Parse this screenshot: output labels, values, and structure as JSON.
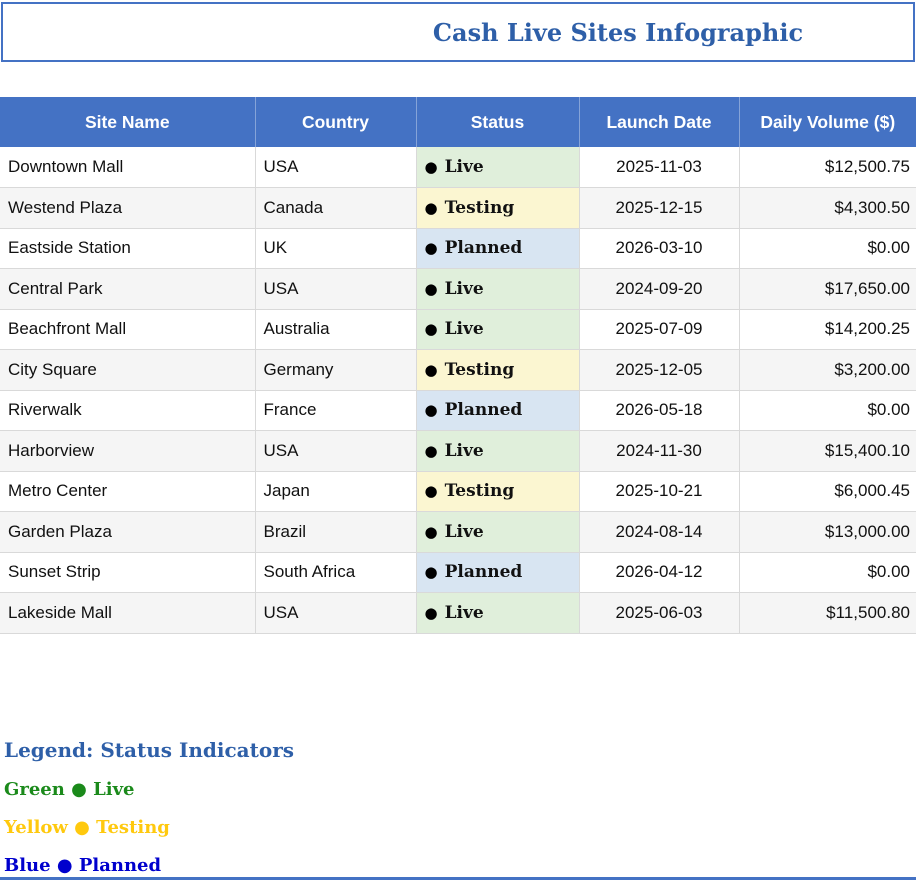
{
  "chart_data": {
    "type": "table",
    "title": "Cash Live Sites Infographic",
    "columns": [
      "Site Name",
      "Country",
      "Status",
      "Launch Date",
      "Daily Volume ($)"
    ],
    "status_bullet": "●",
    "rows": [
      {
        "site": "Downtown Mall",
        "country": "USA",
        "status": "Live",
        "launch_date": "2025-11-03",
        "daily_volume": "$12,500.75"
      },
      {
        "site": "Westend Plaza",
        "country": "Canada",
        "status": "Testing",
        "launch_date": "2025-12-15",
        "daily_volume": "$4,300.50"
      },
      {
        "site": "Eastside Station",
        "country": "UK",
        "status": "Planned",
        "launch_date": "2026-03-10",
        "daily_volume": "$0.00"
      },
      {
        "site": "Central Park",
        "country": "USA",
        "status": "Live",
        "launch_date": "2024-09-20",
        "daily_volume": "$17,650.00"
      },
      {
        "site": "Beachfront Mall",
        "country": "Australia",
        "status": "Live",
        "launch_date": "2025-07-09",
        "daily_volume": "$14,200.25"
      },
      {
        "site": "City Square",
        "country": "Germany",
        "status": "Testing",
        "launch_date": "2025-12-05",
        "daily_volume": "$3,200.00"
      },
      {
        "site": "Riverwalk",
        "country": "France",
        "status": "Planned",
        "launch_date": "2026-05-18",
        "daily_volume": "$0.00"
      },
      {
        "site": "Harborview",
        "country": "USA",
        "status": "Live",
        "launch_date": "2024-11-30",
        "daily_volume": "$15,400.10"
      },
      {
        "site": "Metro Center",
        "country": "Japan",
        "status": "Testing",
        "launch_date": "2025-10-21",
        "daily_volume": "$6,000.45"
      },
      {
        "site": "Garden Plaza",
        "country": "Brazil",
        "status": "Live",
        "launch_date": "2024-08-14",
        "daily_volume": "$13,000.00"
      },
      {
        "site": "Sunset Strip",
        "country": "South Africa",
        "status": "Planned",
        "launch_date": "2026-04-12",
        "daily_volume": "$0.00"
      },
      {
        "site": "Lakeside Mall",
        "country": "USA",
        "status": "Live",
        "launch_date": "2025-06-03",
        "daily_volume": "$11,500.80"
      }
    ],
    "legend": {
      "heading": "Legend: Status Indicators",
      "items": [
        {
          "text": "Green ● Live",
          "status": "Live",
          "color": "#1B8A1B"
        },
        {
          "text": "Yellow ● Testing",
          "status": "Testing",
          "color": "#FFC90E"
        },
        {
          "text": "Blue ● Planned",
          "status": "Planned",
          "color": "#0000CD"
        }
      ]
    }
  },
  "colors": {
    "header_bg": "#4472C4",
    "title_text": "#2E5FA8",
    "border_accent": "#4472C4",
    "status_live_bg": "#E0EFDB",
    "status_testing_bg": "#FBF6D1",
    "status_planned_bg": "#D8E5F2"
  }
}
